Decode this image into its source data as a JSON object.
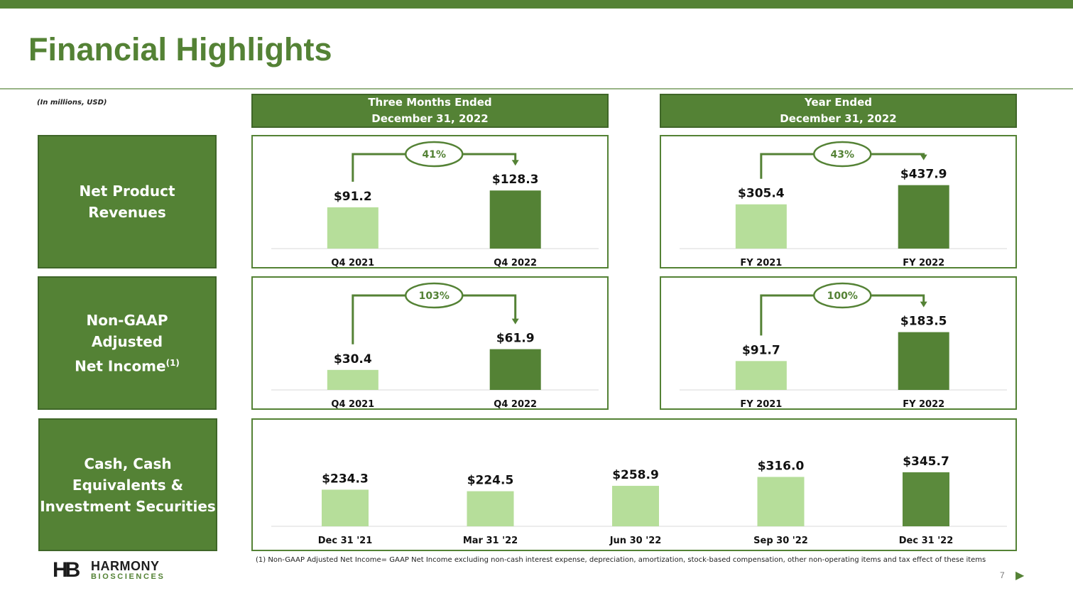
{
  "page": {
    "title": "Financial Highlights",
    "units_note": "(In millions, USD)",
    "page_number": "7",
    "footnote": "(1) Non-GAAP Adjusted Net Income= GAAP Net Income excluding non-cash interest expense, depreciation, amortization, stock-based compensation, other non-operating items and tax effect of these items"
  },
  "headers": {
    "three_months_line1": "Three Months Ended",
    "three_months_line2": "December 31, 2022",
    "year_line1": "Year Ended",
    "year_line2": "December 31, 2022"
  },
  "row_labels": {
    "revenues_line1": "Net Product",
    "revenues_line2": "Revenues",
    "income_line1": "Non-GAAP",
    "income_line2": "Adjusted",
    "income_line3": "Net Income",
    "income_sup": "(1)",
    "cash_line1": "Cash, Cash",
    "cash_line2": "Equivalents &",
    "cash_line3": "Investment Securities"
  },
  "logo": {
    "mark": "HB",
    "name": "HARMONY",
    "sub": "BIOSCIENCES"
  },
  "colors": {
    "dark_green": "#548235",
    "light_green": "#b6de9a",
    "mid_green": "#5b8a3c"
  },
  "chart_data": [
    {
      "id": "q4-revenues",
      "type": "bar",
      "categories": [
        "Q4 2021",
        "Q4 2022"
      ],
      "values": [
        91.2,
        128.3
      ],
      "data_labels": [
        "$91.2",
        "$128.3"
      ],
      "growth_label": "41%",
      "ylim": [
        0,
        160
      ]
    },
    {
      "id": "fy-revenues",
      "type": "bar",
      "categories": [
        "FY 2021",
        "FY 2022"
      ],
      "values": [
        305.4,
        437.9
      ],
      "data_labels": [
        "$305.4",
        "$437.9"
      ],
      "growth_label": "43%",
      "ylim": [
        0,
        500
      ]
    },
    {
      "id": "q4-income",
      "type": "bar",
      "categories": [
        "Q4 2021",
        "Q4 2022"
      ],
      "values": [
        30.4,
        61.9
      ],
      "data_labels": [
        "$30.4",
        "$61.9"
      ],
      "growth_label": "103%",
      "ylim": [
        0,
        110
      ]
    },
    {
      "id": "fy-income",
      "type": "bar",
      "categories": [
        "FY 2021",
        "FY  2022"
      ],
      "values": [
        91.7,
        183.5
      ],
      "data_labels": [
        "$91.7",
        "$183.5"
      ],
      "growth_label": "100%",
      "ylim": [
        0,
        230
      ]
    },
    {
      "id": "cash",
      "type": "bar",
      "categories": [
        "Dec 31 '21",
        "Mar 31 '22",
        "Jun 30 '22",
        "Sep 30 '22",
        "Dec 31 '22"
      ],
      "values": [
        234.3,
        224.5,
        258.9,
        316.0,
        345.7
      ],
      "data_labels": [
        "$234.3",
        "$224.5",
        "$258.9",
        "$316.0",
        "$345.7"
      ],
      "ylim": [
        0,
        500
      ]
    }
  ]
}
